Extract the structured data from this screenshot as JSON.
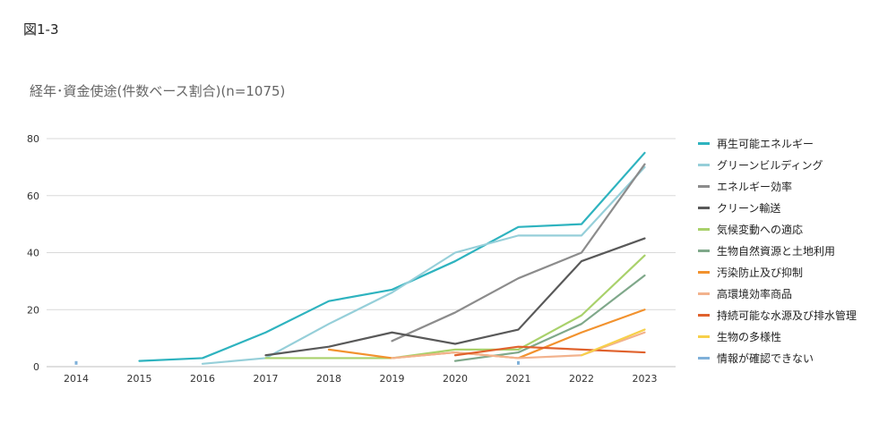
{
  "figure_label": "図1-3",
  "chart_data": {
    "type": "line",
    "title": "経年･資金使途(件数ベース割合)(n=1075)",
    "xlabel": "",
    "ylabel": "",
    "categories": [
      "2014",
      "2015",
      "2016",
      "2017",
      "2018",
      "2019",
      "2020",
      "2021",
      "2022",
      "2023"
    ],
    "yticks": [
      "0",
      "20",
      "40",
      "60",
      "80"
    ],
    "ylim": [
      0,
      80
    ],
    "grid": true,
    "legend_position": "right",
    "series": [
      {
        "name": "再生可能エネルギー",
        "color": "#2eb3bf",
        "values": [
          null,
          2,
          3,
          12,
          23,
          27,
          37,
          49,
          50,
          75
        ]
      },
      {
        "name": "グリーンビルディング",
        "color": "#96cfd9",
        "values": [
          null,
          null,
          1,
          3,
          15,
          26,
          40,
          46,
          46,
          70
        ]
      },
      {
        "name": "エネルギー効率",
        "color": "#8c8c8c",
        "values": [
          null,
          null,
          null,
          null,
          null,
          9,
          19,
          31,
          40,
          71
        ]
      },
      {
        "name": "クリーン輸送",
        "color": "#595959",
        "values": [
          null,
          null,
          null,
          4,
          7,
          12,
          8,
          13,
          37,
          45
        ]
      },
      {
        "name": "気候変動への適応",
        "color": "#a9d16b",
        "values": [
          null,
          null,
          null,
          3,
          3,
          3,
          6,
          6,
          18,
          39
        ]
      },
      {
        "name": "生物自然資源と土地利用",
        "color": "#7fa88a",
        "values": [
          null,
          null,
          null,
          null,
          null,
          null,
          2,
          5,
          15,
          32
        ]
      },
      {
        "name": "汚染防止及び抑制",
        "color": "#f2922e",
        "values": [
          null,
          null,
          null,
          null,
          6,
          3,
          5,
          3,
          12,
          20
        ]
      },
      {
        "name": "高環境効率商品",
        "color": "#f2b28d",
        "values": [
          null,
          null,
          null,
          null,
          null,
          3,
          5,
          3,
          4,
          12
        ]
      },
      {
        "name": "持続可能な水源及び排水管理",
        "color": "#e0622d",
        "values": [
          null,
          null,
          null,
          null,
          null,
          null,
          4,
          7,
          6,
          5
        ]
      },
      {
        "name": "生物の多様性",
        "color": "#f7d04a",
        "values": [
          null,
          null,
          null,
          null,
          null,
          null,
          null,
          null,
          4,
          13
        ]
      },
      {
        "name": "情報が確認できない",
        "color": "#7fb0d9",
        "values": [
          1,
          null,
          null,
          null,
          null,
          null,
          null,
          1,
          null,
          null
        ]
      }
    ]
  }
}
